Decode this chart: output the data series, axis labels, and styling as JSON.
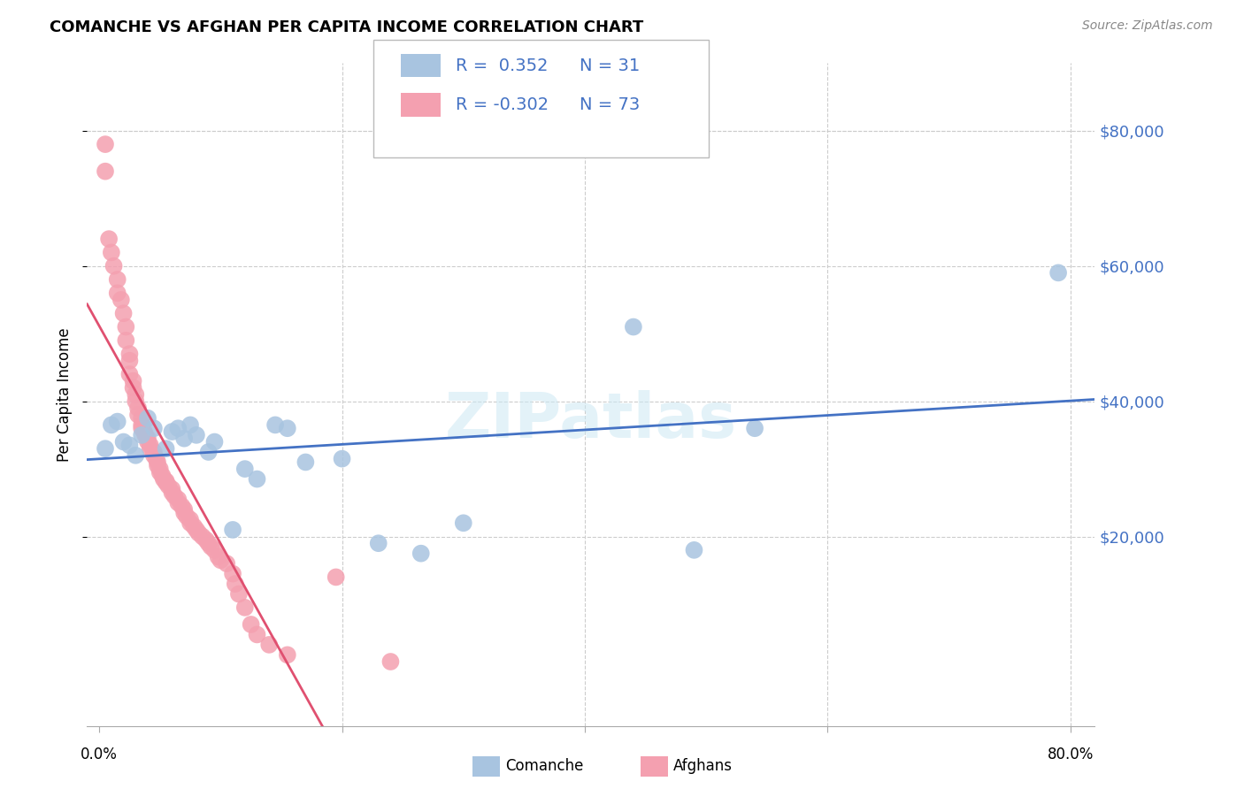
{
  "title": "COMANCHE VS AFGHAN PER CAPITA INCOME CORRELATION CHART",
  "source": "Source: ZipAtlas.com",
  "ylabel": "Per Capita Income",
  "watermark": "ZIPatlas",
  "legend_r_comanche": "R =  0.352",
  "legend_n_comanche": "N = 31",
  "legend_r_afghan": "R = -0.302",
  "legend_n_afghan": "N = 73",
  "comanche_color": "#a8c4e0",
  "afghan_color": "#f4a0b0",
  "comanche_line_color": "#4472c4",
  "afghan_line_color": "#e05070",
  "afghan_line_dash_color": "#f0b8c4",
  "ytick_labels": [
    "$20,000",
    "$40,000",
    "$60,000",
    "$80,000"
  ],
  "ytick_values": [
    20000,
    40000,
    60000,
    80000
  ],
  "ylim": [
    -8000,
    90000
  ],
  "xlim": [
    -0.01,
    0.82
  ],
  "xtick_positions": [
    0.0,
    0.2,
    0.4,
    0.6,
    0.8
  ],
  "comanche_x": [
    0.005,
    0.01,
    0.015,
    0.02,
    0.025,
    0.03,
    0.035,
    0.04,
    0.045,
    0.055,
    0.06,
    0.065,
    0.07,
    0.075,
    0.08,
    0.09,
    0.095,
    0.11,
    0.12,
    0.13,
    0.145,
    0.155,
    0.17,
    0.2,
    0.23,
    0.265,
    0.3,
    0.44,
    0.49,
    0.54,
    0.79
  ],
  "comanche_y": [
    33000,
    36500,
    37000,
    34000,
    33500,
    32000,
    35000,
    37500,
    36000,
    33000,
    35500,
    36000,
    34500,
    36500,
    35000,
    32500,
    34000,
    21000,
    30000,
    28500,
    36500,
    36000,
    31000,
    31500,
    19000,
    17500,
    22000,
    51000,
    18000,
    36000,
    59000
  ],
  "afghan_x": [
    0.005,
    0.005,
    0.008,
    0.01,
    0.012,
    0.015,
    0.015,
    0.018,
    0.02,
    0.022,
    0.022,
    0.025,
    0.025,
    0.025,
    0.028,
    0.028,
    0.03,
    0.03,
    0.032,
    0.032,
    0.035,
    0.035,
    0.035,
    0.037,
    0.038,
    0.04,
    0.04,
    0.042,
    0.042,
    0.045,
    0.045,
    0.047,
    0.048,
    0.048,
    0.05,
    0.05,
    0.052,
    0.053,
    0.055,
    0.055,
    0.057,
    0.06,
    0.06,
    0.062,
    0.065,
    0.065,
    0.068,
    0.07,
    0.07,
    0.072,
    0.075,
    0.075,
    0.078,
    0.08,
    0.082,
    0.085,
    0.088,
    0.09,
    0.092,
    0.095,
    0.098,
    0.1,
    0.105,
    0.11,
    0.112,
    0.115,
    0.12,
    0.125,
    0.13,
    0.14,
    0.155,
    0.195,
    0.24
  ],
  "afghan_y": [
    78000,
    74000,
    64000,
    62000,
    60000,
    58000,
    56000,
    55000,
    53000,
    51000,
    49000,
    47000,
    46000,
    44000,
    43000,
    42000,
    41000,
    40000,
    39000,
    38000,
    37500,
    36500,
    36000,
    35500,
    35000,
    34500,
    34000,
    33500,
    33000,
    32500,
    32000,
    31500,
    31000,
    30500,
    30000,
    29500,
    29000,
    28500,
    28200,
    28000,
    27500,
    27000,
    26500,
    26000,
    25500,
    25000,
    24500,
    24000,
    23500,
    23000,
    22500,
    22000,
    21500,
    21000,
    20500,
    20000,
    19500,
    19000,
    18500,
    18000,
    17000,
    16500,
    16000,
    14500,
    13000,
    11500,
    9500,
    7000,
    5500,
    4000,
    2500,
    14000,
    1500
  ]
}
